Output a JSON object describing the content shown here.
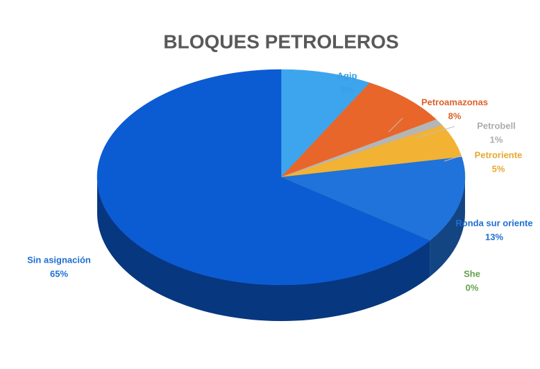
{
  "chart_data": {
    "type": "pie3d",
    "title": "BLOQUES PETROLEROS",
    "categories": [
      "Agip",
      "Petroamazonas",
      "Petrobell",
      "Petroriente",
      "Ronda sur oriente",
      "She",
      "Sin asignación"
    ],
    "values": [
      8,
      8,
      1,
      5,
      13,
      0,
      65
    ],
    "value_labels": [
      "8%",
      "8%",
      "1%",
      "5%",
      "13%",
      "0%",
      "65%"
    ],
    "colors": [
      "#3da5ee",
      "#e8662a",
      "#b5b5b5",
      "#f2b233",
      "#1f73da",
      "#6aa84f",
      "#0b5bd3"
    ]
  }
}
